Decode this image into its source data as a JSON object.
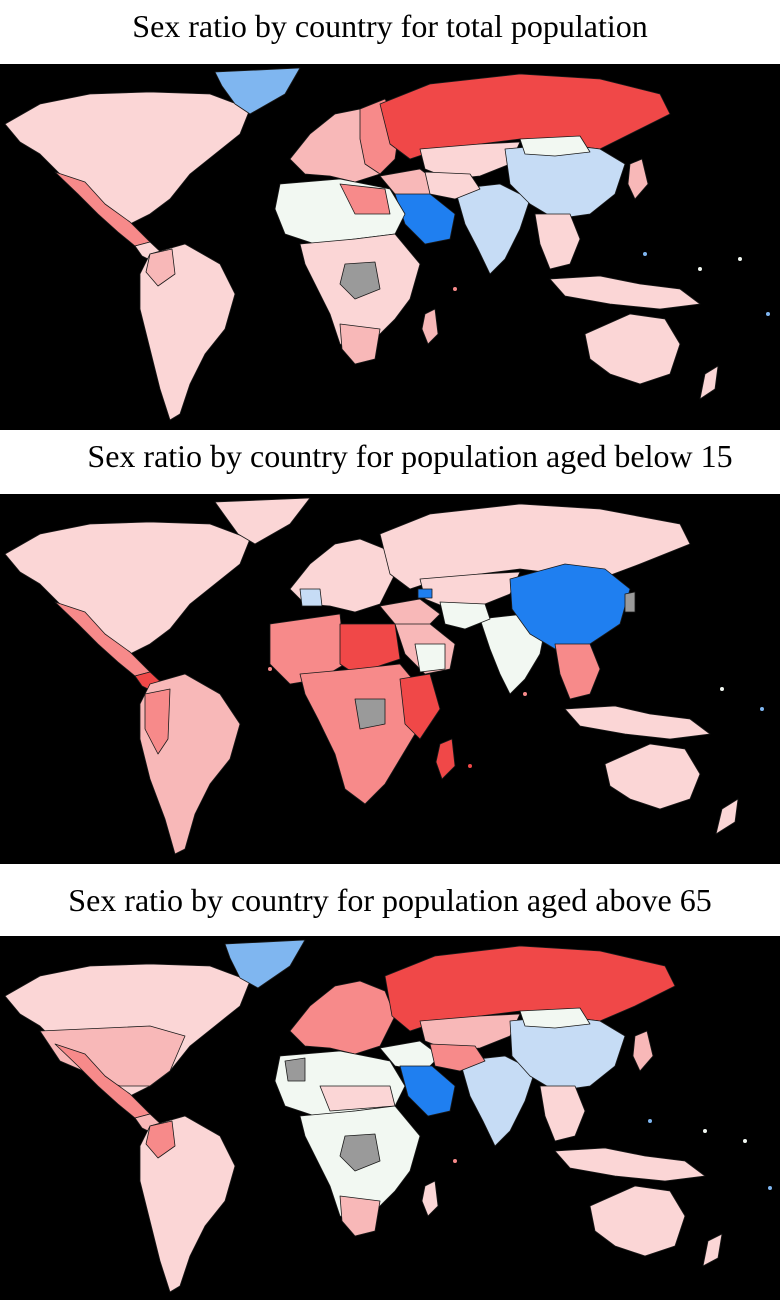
{
  "panels": [
    {
      "title": "Sex ratio by country for total population"
    },
    {
      "title": "Sex ratio by country for population aged below 15"
    },
    {
      "title": "Sex ratio by country for population aged above 65"
    }
  ],
  "colors": {
    "ocean": "#000000",
    "strong_female": "#f04848",
    "medium_female": "#f78a8a",
    "light_female": "#f8b8b8",
    "slight_female": "#fbd6d6",
    "neutral": "#f2f8f2",
    "light_male": "#c6dcf5",
    "medium_male": "#7fb6f0",
    "strong_male": "#1f7ff0",
    "no_data": "#9a9a9a"
  }
}
